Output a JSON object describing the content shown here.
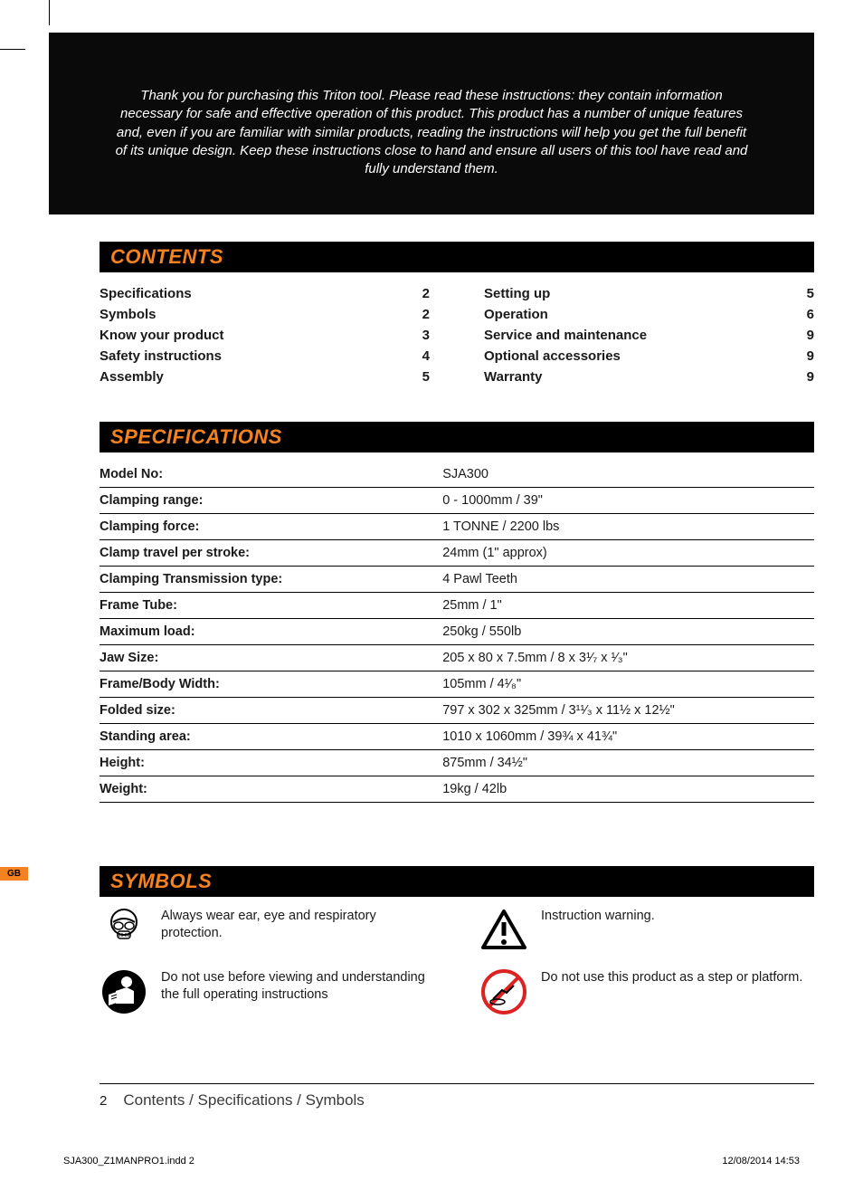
{
  "colors": {
    "accent_orange": "#f58220",
    "black": "#000000",
    "white": "#ffffff",
    "text": "#1a1a1a",
    "footer_text": "#3a3a3a"
  },
  "intro": "Thank you for purchasing this Triton tool. Please read these instructions: they contain information necessary for safe and effective operation of this product. This product has a number of unique features and, even if you are familiar with similar products, reading the instructions will help you get the full benefit of its unique design. Keep these instructions close to hand and ensure all users of this tool have read and fully understand them.",
  "sections": {
    "contents_title": "CONTENTS",
    "specifications_title": "SPECIFICATIONS",
    "symbols_title": "SYMBOLS"
  },
  "contents": {
    "left": [
      {
        "label": "Specifications",
        "page": "2"
      },
      {
        "label": "Symbols",
        "page": "2"
      },
      {
        "label": "Know your product",
        "page": "3"
      },
      {
        "label": "Safety instructions",
        "page": "4"
      },
      {
        "label": "Assembly",
        "page": "5"
      }
    ],
    "right": [
      {
        "label": "Setting up",
        "page": "5"
      },
      {
        "label": "Operation",
        "page": "6"
      },
      {
        "label": "Service and maintenance",
        "page": "9"
      },
      {
        "label": "Optional accessories",
        "page": "9"
      },
      {
        "label": "Warranty",
        "page": "9"
      }
    ]
  },
  "specifications": [
    {
      "label": "Model No:",
      "value": "SJA300"
    },
    {
      "label": "Clamping range:",
      "value": "0 - 1000mm / 39\""
    },
    {
      "label": "Clamping force:",
      "value": "1 TONNE / 2200 lbs"
    },
    {
      "label": "Clamp travel per stroke:",
      "value": "24mm (1\" approx)"
    },
    {
      "label": "Clamping Transmission type:",
      "value": "4 Pawl Teeth"
    },
    {
      "label": "Frame Tube:",
      "value": "25mm / 1\""
    },
    {
      "label": "Maximum load:",
      "value": "250kg / 550lb"
    },
    {
      "label": "Jaw Size:",
      "value": "205 x 80 x 7.5mm / 8 x 3¹⁄₇ x ¹⁄₃\""
    },
    {
      "label": "Frame/Body Width:",
      "value": "105mm / 4¹⁄₈\""
    },
    {
      "label": "Folded size:",
      "value": "797 x 302 x 325mm / 3¹¹⁄₃ x 11½ x 12½\""
    },
    {
      "label": "Standing area:",
      "value": "1010 x 1060mm / 39¾ x 41¾\""
    },
    {
      "label": "Height:",
      "value": "875mm / 34½\""
    },
    {
      "label": "Weight:",
      "value": "19kg / 42lb"
    }
  ],
  "symbols": {
    "left": [
      {
        "icon": "ppe-icon",
        "text": "Always wear ear, eye and respiratory protection."
      },
      {
        "icon": "read-manual-icon",
        "text": "Do not use before viewing and understanding the full operating instructions"
      }
    ],
    "right": [
      {
        "icon": "warning-triangle-icon",
        "text": "Instruction warning."
      },
      {
        "icon": "no-step-icon",
        "text": "Do not use this product as a step or platform."
      }
    ]
  },
  "side_tab": "GB",
  "footer": {
    "page_number": "2",
    "title": "Contents / Specifications / Symbols"
  },
  "imprint": {
    "file": "SJA300_Z1MANPRO1.indd   2",
    "datetime": "12/08/2014   14:53"
  }
}
